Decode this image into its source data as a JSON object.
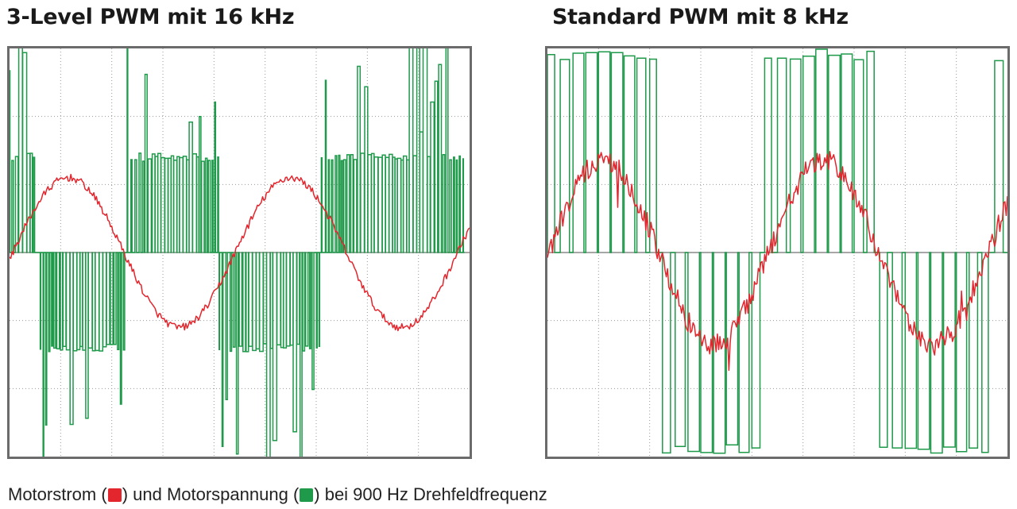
{
  "titles": {
    "left": "3-Level PWM mit 16 kHz",
    "right": "Standard PWM mit 8 kHz"
  },
  "caption": {
    "part1": "Motorstrom (",
    "part2": ") und Motorspannung (",
    "part3": ") bei 900 Hz Drehfeldfrequenz"
  },
  "colors": {
    "current": "#e3262d",
    "voltage": "#1e9a4a",
    "axis": "#8a8a8a",
    "grid": "#9a9a9a",
    "frame": "#6b6b6b"
  },
  "chart_data": [
    {
      "type": "line",
      "title": "3-Level PWM mit 16 kHz",
      "grid": true,
      "axes_tick_labels": false,
      "series": [
        {
          "name": "Motorstrom",
          "color": "#e3262d",
          "waveform": "noisy sinusoid",
          "cycles_shown": 2,
          "amplitude_div": 1.1,
          "peak_times_div": [
            1.15,
            5.5
          ],
          "trough_times_div": [
            3.0,
            7.5
          ]
        },
        {
          "name": "Motorspannung",
          "color": "#1e9a4a",
          "waveform": "3-level PWM",
          "level_div": 1.4,
          "spike_max_div": 3.1,
          "high_intervals_div": [
            [
              0,
              0.5
            ],
            [
              2.3,
              4.1
            ],
            [
              6.1,
              8.9
            ]
          ],
          "low_intervals_div": [
            [
              0.6,
              2.3
            ],
            [
              4.1,
              6.1
            ]
          ]
        }
      ],
      "x_divisions": 9,
      "y_divisions": 6
    },
    {
      "type": "line",
      "title": "Standard PWM mit 8 kHz",
      "grid": true,
      "axes_tick_labels": false,
      "series": [
        {
          "name": "Motorstrom",
          "color": "#e3262d",
          "waveform": "noisy sinusoid",
          "cycles_shown": 2,
          "amplitude_div": 1.35,
          "peak_times_div": [
            1.1,
            5.4
          ],
          "trough_times_div": [
            3.2,
            7.6
          ]
        },
        {
          "name": "Motorspannung",
          "color": "#1e9a4a",
          "waveform": "2-level PWM",
          "level_div": 2.9,
          "switching_periods_div": 0.25
        }
      ],
      "x_divisions": 9,
      "y_divisions": 6
    }
  ]
}
